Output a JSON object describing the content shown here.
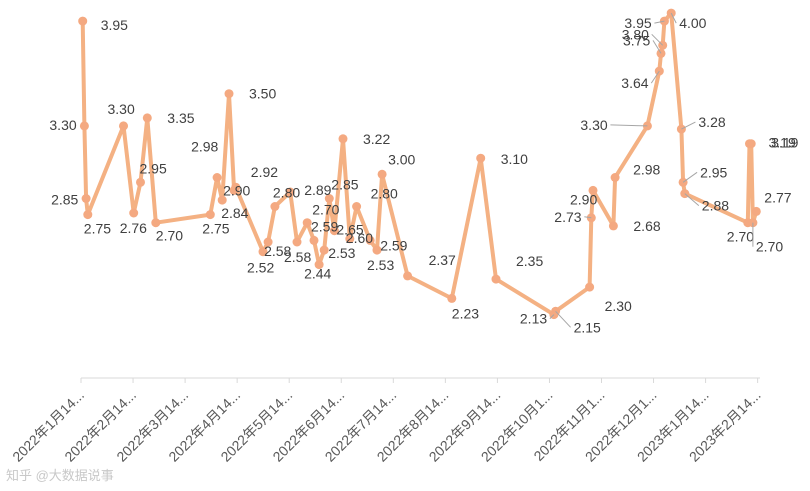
{
  "chart_data": {
    "type": "line",
    "title": "",
    "xlabel": "",
    "ylabel": "",
    "ylim": [
      1.6,
      4.05
    ],
    "grid": false,
    "legend": "none",
    "color": "#f4b183",
    "marker_color": "#f4a981",
    "x_tick_labels": [
      "2022年1月14...",
      "2022年2月14...",
      "2022年3月14...",
      "2022年4月14...",
      "2022年5月14...",
      "2022年6月14...",
      "2022年7月14...",
      "2022年8月14...",
      "2022年9月14...",
      "2022年10月1...",
      "2022年11月1...",
      "2022年12月1...",
      "2023年1月14...",
      "2023年2月14..."
    ],
    "points": [
      {
        "x": "2022-01-15",
        "y": 3.95,
        "label": "3.95"
      },
      {
        "x": "2022-01-16",
        "y": 3.3,
        "label": "3.30"
      },
      {
        "x": "2022-01-17",
        "y": 2.85,
        "label": "2.85"
      },
      {
        "x": "2022-01-18",
        "y": 2.75,
        "label": "2.75"
      },
      {
        "x": "2022-02-08",
        "y": 3.3,
        "label": "3.30"
      },
      {
        "x": "2022-02-14",
        "y": 2.76,
        "label": "2.76"
      },
      {
        "x": "2022-02-18",
        "y": 2.95,
        "label": "2.95"
      },
      {
        "x": "2022-02-22",
        "y": 3.35,
        "label": "3.35"
      },
      {
        "x": "2022-02-27",
        "y": 2.7,
        "label": "2.70"
      },
      {
        "x": "2022-03-31",
        "y": 2.75,
        "label": "2.75"
      },
      {
        "x": "2022-04-04",
        "y": 2.98,
        "label": "2.98"
      },
      {
        "x": "2022-04-07",
        "y": 2.84,
        "label": "2.84"
      },
      {
        "x": "2022-04-11",
        "y": 3.5,
        "label": "3.50"
      },
      {
        "x": "2022-04-14",
        "y": 2.9,
        "label": "2.90"
      },
      {
        "x": "2022-04-15",
        "y": 2.92,
        "label": "2.92"
      },
      {
        "x": "2022-05-01",
        "y": 2.52,
        "label": "2.52"
      },
      {
        "x": "2022-05-04",
        "y": 2.58,
        "label": "2.58"
      },
      {
        "x": "2022-05-08",
        "y": 2.8,
        "label": "2.80"
      },
      {
        "x": "2022-05-17",
        "y": 2.89,
        "label": "2.89"
      },
      {
        "x": "2022-05-21",
        "y": 2.58,
        "label": "2.58"
      },
      {
        "x": "2022-05-27",
        "y": 2.7,
        "label": "2.70"
      },
      {
        "x": "2022-05-31",
        "y": 2.59,
        "label": "2.59"
      },
      {
        "x": "2022-06-03",
        "y": 2.44,
        "label": "2.44"
      },
      {
        "x": "2022-06-06",
        "y": 2.53,
        "label": "2.53"
      },
      {
        "x": "2022-06-09",
        "y": 2.85,
        "label": "2.85"
      },
      {
        "x": "2022-06-12",
        "y": 2.65,
        "label": "2.65"
      },
      {
        "x": "2022-06-17",
        "y": 3.22,
        "label": "3.22"
      },
      {
        "x": "2022-06-21",
        "y": 2.6,
        "label": "2.60"
      },
      {
        "x": "2022-06-25",
        "y": 2.8,
        "label": "2.80"
      },
      {
        "x": "2022-07-03",
        "y": 2.59,
        "label": "2.59"
      },
      {
        "x": "2022-07-07",
        "y": 2.53,
        "label": "2.53"
      },
      {
        "x": "2022-07-10",
        "y": 3.0,
        "label": "3.00"
      },
      {
        "x": "2022-07-25",
        "y": 2.37,
        "label": "2.37"
      },
      {
        "x": "2022-08-20",
        "y": 2.23,
        "label": "2.23"
      },
      {
        "x": "2022-09-06",
        "y": 3.1,
        "label": "3.10"
      },
      {
        "x": "2022-09-15",
        "y": 2.35,
        "label": "2.35"
      },
      {
        "x": "2022-10-19",
        "y": 2.13,
        "label": "2.13"
      },
      {
        "x": "2022-10-20",
        "y": 2.15,
        "label": "2.15"
      },
      {
        "x": "2022-11-09",
        "y": 2.3,
        "label": "2.30"
      },
      {
        "x": "2022-11-10",
        "y": 2.73,
        "label": "2.73"
      },
      {
        "x": "2022-11-11",
        "y": 2.9,
        "label": "2.90"
      },
      {
        "x": "2022-11-23",
        "y": 2.68,
        "label": "2.68"
      },
      {
        "x": "2022-11-24",
        "y": 2.98,
        "label": "2.98"
      },
      {
        "x": "2022-12-13",
        "y": 3.3,
        "label": "3.30"
      },
      {
        "x": "2022-12-20",
        "y": 3.64,
        "label": "3.64"
      },
      {
        "x": "2022-12-21",
        "y": 3.75,
        "label": "3.75"
      },
      {
        "x": "2022-12-22",
        "y": 3.8,
        "label": "3.80"
      },
      {
        "x": "2022-12-23",
        "y": 3.95,
        "label": "3.95"
      },
      {
        "x": "2022-12-27",
        "y": 4.0,
        "label": "4.00"
      },
      {
        "x": "2023-01-02",
        "y": 3.28,
        "label": "3.28"
      },
      {
        "x": "2023-01-03",
        "y": 2.95,
        "label": "2.95"
      },
      {
        "x": "2023-01-04",
        "y": 2.88,
        "label": "2.88"
      },
      {
        "x": "2023-02-10",
        "y": 2.7,
        "label": "2.70"
      },
      {
        "x": "2023-02-11",
        "y": 3.19,
        "label": "3.19"
      },
      {
        "x": "2023-02-12",
        "y": 3.19,
        "label": "3.19"
      },
      {
        "x": "2023-02-13",
        "y": 2.7,
        "label": "2.70"
      },
      {
        "x": "2023-02-15",
        "y": 2.77,
        "label": "2.77"
      }
    ]
  },
  "watermark": {
    "text": "知乎 @大数据说事"
  }
}
